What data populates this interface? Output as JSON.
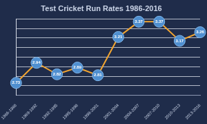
{
  "chart_data": {
    "type": "line",
    "title": "Test Cricket Run Rates 1986-2016",
    "categories": [
      "1986-1988",
      "1989-1992",
      "1992-1995",
      "1995-1998",
      "1998-2001",
      "2001-2004",
      "2004-2007",
      "2007-2010",
      "2010-2013",
      "2013-2016"
    ],
    "values": [
      2.73,
      2.94,
      2.82,
      2.89,
      2.81,
      3.21,
      3.37,
      3.37,
      3.17,
      3.26
    ],
    "color": "#f2a531",
    "marker": "circle",
    "ylim": [
      2.6,
      3.4
    ],
    "yticks": [
      2.6,
      2.7,
      2.8,
      2.9,
      3.0,
      3.1,
      3.2,
      3.3,
      3.4
    ],
    "grid": true,
    "data_labels": true,
    "tick_labels": "x"
  }
}
